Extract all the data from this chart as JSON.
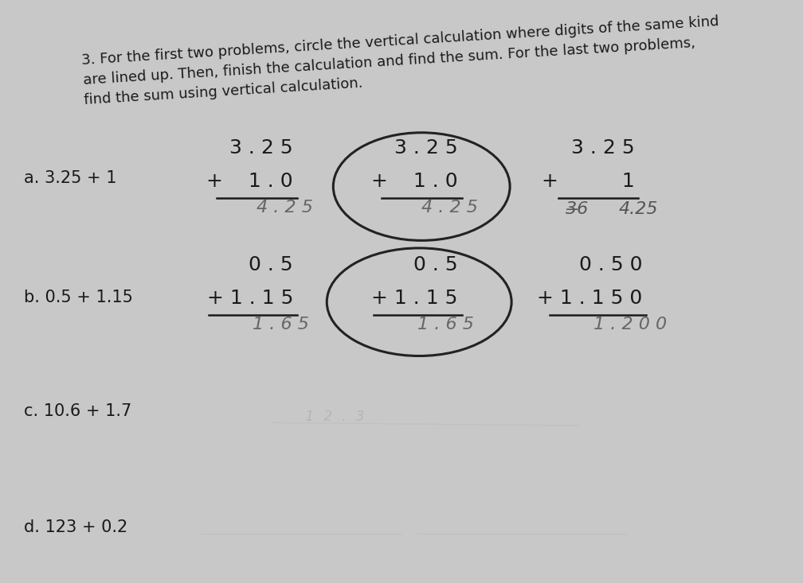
{
  "bg_color": "#c8c8c8",
  "paper_color": "#e8e8e4",
  "text_color": "#1a1a1a",
  "handwrite_color": "#444444",
  "title_lines": [
    "3. For the first two problems, circle the vertical calculation where digits of the same kind",
    "are lined up. Then, finish the calculation and find the sum. For the last two problems,",
    "find the sum using vertical calculation."
  ],
  "label_a": "a. 3.25 + 1",
  "label_b": "b. 0.5 + 1.15",
  "label_c": "c. 10.6 + 1.7",
  "label_d": "d. 123 + 0.2",
  "calc_fontsize": 18,
  "label_fontsize": 15,
  "title_fontsize": 13
}
